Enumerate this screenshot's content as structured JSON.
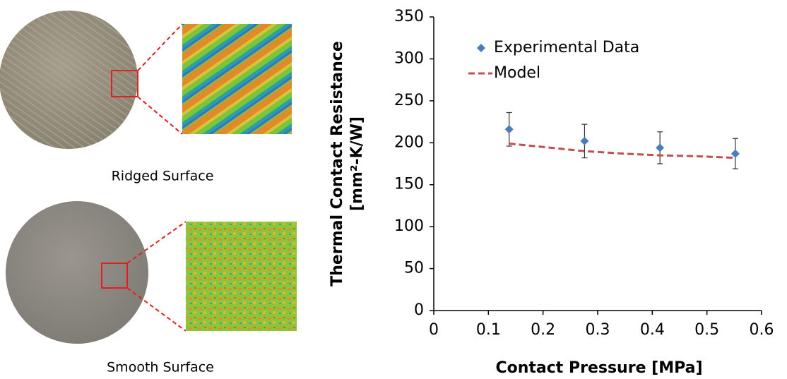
{
  "images": {
    "labels": [
      "Ridged Surface",
      "Smooth Surface"
    ]
  },
  "chart_data": {
    "type": "scatter",
    "xlabel": "Contact Pressure [MPa]",
    "ylabel": [
      "Thermal Contact Resistance",
      "[mm²-K/W]"
    ],
    "xlim": [
      0,
      0.6
    ],
    "xticks": [
      0,
      0.1,
      0.2,
      0.3,
      0.4,
      0.5,
      0.6
    ],
    "ylim": [
      0,
      350
    ],
    "yticks": [
      0,
      50,
      100,
      150,
      200,
      250,
      300,
      350
    ],
    "legend": "upper left",
    "series": [
      {
        "name": "Experimental Data",
        "color": "#4a7ebb",
        "marker": "diamond",
        "x": [
          0.138,
          0.276,
          0.414,
          0.552
        ],
        "values": [
          216,
          202,
          194,
          187
        ],
        "errors": [
          20,
          20,
          19,
          18
        ]
      },
      {
        "name": "Model",
        "color": "#c0504d",
        "line_style": "dashed",
        "x": [
          0.138,
          0.2,
          0.276,
          0.35,
          0.414,
          0.48,
          0.552
        ],
        "values": [
          199,
          195,
          190,
          187,
          185,
          184,
          182
        ]
      }
    ]
  }
}
